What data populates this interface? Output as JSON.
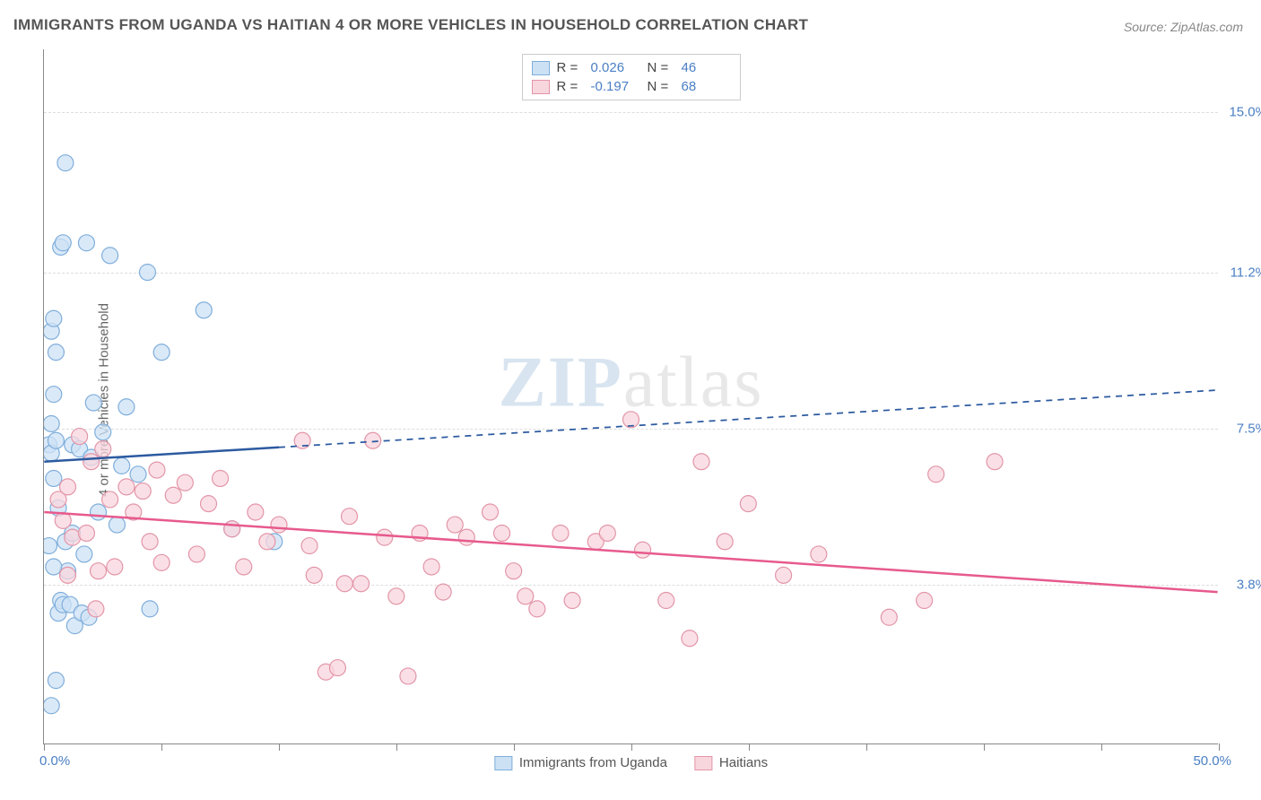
{
  "title": "IMMIGRANTS FROM UGANDA VS HAITIAN 4 OR MORE VEHICLES IN HOUSEHOLD CORRELATION CHART",
  "source": "Source: ZipAtlas.com",
  "y_axis_label": "4 or more Vehicles in Household",
  "watermark_bold": "ZIP",
  "watermark_rest": "atlas",
  "chart": {
    "type": "scatter",
    "xlim": [
      0,
      50
    ],
    "ylim": [
      0,
      16.5
    ],
    "x_min_label": "0.0%",
    "x_max_label": "50.0%",
    "x_ticks": [
      0,
      5,
      10,
      15,
      20,
      25,
      30,
      35,
      40,
      45,
      50
    ],
    "y_gridlines": [
      {
        "value": 3.8,
        "label": "3.8%"
      },
      {
        "value": 7.5,
        "label": "7.5%"
      },
      {
        "value": 11.2,
        "label": "11.2%"
      },
      {
        "value": 15.0,
        "label": "15.0%"
      }
    ],
    "background_color": "#ffffff",
    "grid_color": "#dddddd",
    "axis_color": "#888888",
    "series": [
      {
        "name": "Immigrants from Uganda",
        "marker_fill": "#cde1f5",
        "marker_stroke": "#7faedb",
        "marker_radius": 9,
        "marker_opacity": 0.75,
        "trend_color": "#2c5aa0",
        "trend_width": 2.5,
        "trend_solid_end_x": 10,
        "trend_y_start": 6.7,
        "trend_y_end": 8.4,
        "R": "0.026",
        "N": "46",
        "points": [
          [
            0.2,
            7.1
          ],
          [
            0.3,
            6.9
          ],
          [
            0.3,
            7.6
          ],
          [
            0.4,
            8.3
          ],
          [
            0.4,
            6.3
          ],
          [
            0.5,
            7.2
          ],
          [
            0.5,
            9.3
          ],
          [
            0.6,
            5.6
          ],
          [
            0.7,
            11.8
          ],
          [
            0.8,
            11.9
          ],
          [
            0.9,
            13.8
          ],
          [
            0.3,
            9.8
          ],
          [
            0.4,
            10.1
          ],
          [
            0.6,
            3.1
          ],
          [
            0.7,
            3.4
          ],
          [
            0.8,
            3.3
          ],
          [
            1.0,
            4.1
          ],
          [
            1.1,
            3.3
          ],
          [
            1.2,
            7.1
          ],
          [
            1.3,
            2.8
          ],
          [
            1.5,
            7.0
          ],
          [
            1.6,
            3.1
          ],
          [
            1.8,
            11.9
          ],
          [
            1.9,
            3.0
          ],
          [
            2.0,
            6.8
          ],
          [
            2.1,
            8.1
          ],
          [
            2.3,
            5.5
          ],
          [
            2.5,
            7.4
          ],
          [
            2.8,
            11.6
          ],
          [
            3.1,
            5.2
          ],
          [
            3.3,
            6.6
          ],
          [
            3.5,
            8.0
          ],
          [
            4.0,
            6.4
          ],
          [
            4.4,
            11.2
          ],
          [
            4.5,
            3.2
          ],
          [
            5.0,
            9.3
          ],
          [
            6.8,
            10.3
          ],
          [
            0.3,
            0.9
          ],
          [
            0.5,
            1.5
          ],
          [
            0.2,
            4.7
          ],
          [
            0.9,
            4.8
          ],
          [
            1.2,
            5.0
          ],
          [
            8.0,
            5.1
          ],
          [
            9.8,
            4.8
          ],
          [
            1.7,
            4.5
          ],
          [
            0.4,
            4.2
          ]
        ]
      },
      {
        "name": "Haitians",
        "marker_fill": "#f8d6dd",
        "marker_stroke": "#e395a8",
        "marker_radius": 9,
        "marker_opacity": 0.75,
        "trend_color": "#e75a8d",
        "trend_width": 2.5,
        "trend_solid_end_x": 50,
        "trend_y_start": 5.5,
        "trend_y_end": 3.6,
        "R": "-0.197",
        "N": "68",
        "points": [
          [
            0.6,
            5.8
          ],
          [
            0.8,
            5.3
          ],
          [
            1.0,
            6.1
          ],
          [
            1.2,
            4.9
          ],
          [
            1.5,
            7.3
          ],
          [
            1.8,
            5.0
          ],
          [
            2.0,
            6.7
          ],
          [
            2.3,
            4.1
          ],
          [
            2.5,
            7.0
          ],
          [
            2.8,
            5.8
          ],
          [
            3.0,
            4.2
          ],
          [
            3.5,
            6.1
          ],
          [
            3.8,
            5.5
          ],
          [
            4.2,
            6.0
          ],
          [
            4.5,
            4.8
          ],
          [
            4.8,
            6.5
          ],
          [
            5.0,
            4.3
          ],
          [
            5.5,
            5.9
          ],
          [
            6.0,
            6.2
          ],
          [
            6.5,
            4.5
          ],
          [
            7.0,
            5.7
          ],
          [
            7.5,
            6.3
          ],
          [
            8.0,
            5.1
          ],
          [
            8.5,
            4.2
          ],
          [
            9.0,
            5.5
          ],
          [
            9.5,
            4.8
          ],
          [
            10.0,
            5.2
          ],
          [
            11.0,
            7.2
          ],
          [
            11.5,
            4.0
          ],
          [
            12.0,
            1.7
          ],
          [
            12.5,
            1.8
          ],
          [
            13.0,
            5.4
          ],
          [
            13.5,
            3.8
          ],
          [
            14.0,
            7.2
          ],
          [
            14.5,
            4.9
          ],
          [
            15.0,
            3.5
          ],
          [
            15.5,
            1.6
          ],
          [
            16.0,
            5.0
          ],
          [
            17.0,
            3.6
          ],
          [
            17.5,
            5.2
          ],
          [
            18.0,
            4.9
          ],
          [
            19.0,
            5.5
          ],
          [
            19.5,
            5.0
          ],
          [
            20.0,
            4.1
          ],
          [
            20.5,
            3.5
          ],
          [
            21.0,
            3.2
          ],
          [
            22.0,
            5.0
          ],
          [
            22.5,
            3.4
          ],
          [
            23.5,
            4.8
          ],
          [
            24.0,
            5.0
          ],
          [
            25.0,
            7.7
          ],
          [
            25.5,
            4.6
          ],
          [
            26.5,
            3.4
          ],
          [
            27.5,
            2.5
          ],
          [
            28.0,
            6.7
          ],
          [
            30.0,
            5.7
          ],
          [
            31.5,
            4.0
          ],
          [
            33.0,
            4.5
          ],
          [
            36.0,
            3.0
          ],
          [
            37.5,
            3.4
          ],
          [
            38.0,
            6.4
          ],
          [
            40.5,
            6.7
          ],
          [
            1.0,
            4.0
          ],
          [
            2.2,
            3.2
          ],
          [
            11.3,
            4.7
          ],
          [
            12.8,
            3.8
          ],
          [
            16.5,
            4.2
          ],
          [
            29.0,
            4.8
          ]
        ]
      }
    ]
  },
  "legend_top": {
    "R_label": "R  =",
    "N_label": "N  ="
  },
  "colors": {
    "title": "#555555",
    "source": "#888888",
    "tick_label": "#4a7fc4"
  }
}
